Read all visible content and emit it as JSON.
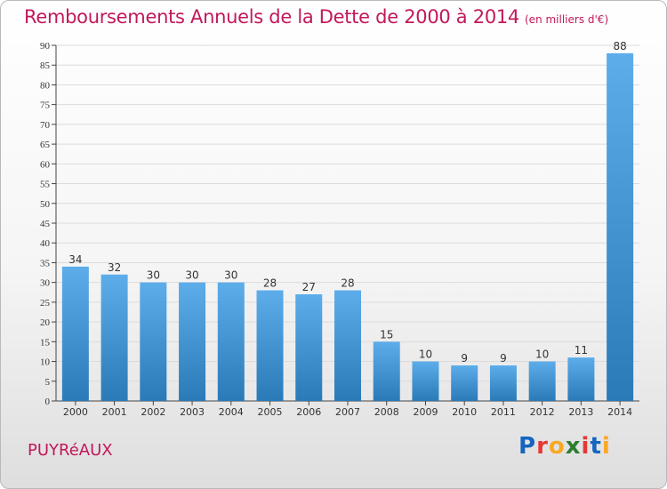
{
  "title": "Remboursements Annuels de la Dette de 2000 à 2014",
  "subtitle": "(en milliers d'€)",
  "commune": "PUYRéAUX",
  "logo": {
    "text": "Proxiti",
    "letters": [
      {
        "char": "P",
        "color": "#1565c0"
      },
      {
        "char": "r",
        "color": "#e53935"
      },
      {
        "char": "o",
        "color": "#f9a825"
      },
      {
        "char": "x",
        "color": "#2e7d32"
      },
      {
        "char": "i",
        "color": "#e53935"
      },
      {
        "char": "t",
        "color": "#1565c0"
      },
      {
        "char": "i",
        "color": "#f9a825"
      }
    ]
  },
  "colors": {
    "accent": "#c2185b",
    "bar_light": "#5dadea",
    "bar_dark": "#2a7ab8"
  },
  "chart_data": {
    "type": "bar",
    "title": "Remboursements Annuels de la Dette de 2000 à 2014",
    "subtitle": "(en milliers d'€)",
    "categories": [
      "2000",
      "2001",
      "2002",
      "2003",
      "2004",
      "2005",
      "2006",
      "2007",
      "2008",
      "2009",
      "2010",
      "2011",
      "2012",
      "2013",
      "2014"
    ],
    "values": [
      34,
      32,
      30,
      30,
      30,
      28,
      27,
      28,
      15,
      10,
      9,
      9,
      10,
      11,
      88
    ],
    "ylim": [
      0,
      90
    ],
    "yticks": [
      0,
      5,
      10,
      15,
      20,
      25,
      30,
      35,
      40,
      45,
      50,
      55,
      60,
      65,
      70,
      75,
      80,
      85,
      90
    ],
    "grid": true,
    "legend": "none"
  }
}
